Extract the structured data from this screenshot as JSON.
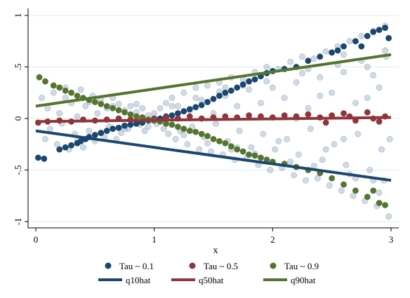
{
  "chart_data": {
    "type": "scatter",
    "xlabel": "x",
    "ylabel": "",
    "xlim": [
      0,
      3
    ],
    "ylim": [
      -1,
      1
    ],
    "x_ticks": [
      0,
      1,
      2,
      3
    ],
    "x_tick_labels": [
      "0",
      "1",
      "2",
      "3"
    ],
    "y_ticks": [
      -1,
      -0.5,
      0,
      0.5,
      1
    ],
    "y_tick_labels": [
      "-1",
      "-.5",
      "0",
      ".5",
      "1"
    ],
    "grid": "horizontal",
    "legend": "bottom",
    "background_points": {
      "color": "#a9bccf",
      "description_of_trend": "dense cloud within y = ±x/3 band",
      "points": [
        [
          0.05,
          0.2
        ],
        [
          0.08,
          -0.2
        ],
        [
          0.1,
          0.1
        ],
        [
          0.12,
          -0.1
        ],
        [
          0.15,
          0.25
        ],
        [
          0.18,
          -0.25
        ],
        [
          0.2,
          0.05
        ],
        [
          0.22,
          -0.05
        ],
        [
          0.25,
          0.3
        ],
        [
          0.28,
          -0.3
        ],
        [
          0.3,
          0.15
        ],
        [
          0.33,
          -0.15
        ],
        [
          0.35,
          0.02
        ],
        [
          0.38,
          0.28
        ],
        [
          0.4,
          -0.28
        ],
        [
          0.42,
          0.12
        ],
        [
          0.45,
          -0.12
        ],
        [
          0.48,
          0.22
        ],
        [
          0.5,
          -0.22
        ],
        [
          0.52,
          0.05
        ],
        [
          0.55,
          0.18
        ],
        [
          0.58,
          -0.18
        ],
        [
          0.6,
          0.1
        ],
        [
          0.62,
          -0.08
        ],
        [
          0.65,
          0.2
        ],
        [
          0.68,
          -0.2
        ],
        [
          0.7,
          0.14
        ],
        [
          0.72,
          -0.14
        ],
        [
          0.75,
          0.08
        ],
        [
          0.78,
          -0.1
        ],
        [
          0.8,
          0.12
        ],
        [
          0.82,
          -0.04
        ],
        [
          0.85,
          0.06
        ],
        [
          0.88,
          -0.06
        ],
        [
          0.9,
          0.1
        ],
        [
          0.92,
          -0.12
        ],
        [
          0.95,
          0.03
        ],
        [
          0.98,
          -0.02
        ],
        [
          1.0,
          0.05
        ],
        [
          1.02,
          -0.05
        ],
        [
          1.05,
          0.1
        ],
        [
          1.08,
          -0.1
        ],
        [
          1.1,
          0.15
        ],
        [
          1.12,
          -0.15
        ],
        [
          1.15,
          0.2
        ],
        [
          1.18,
          -0.2
        ],
        [
          1.2,
          0.12
        ],
        [
          1.22,
          -0.12
        ],
        [
          1.25,
          0.25
        ],
        [
          1.28,
          -0.25
        ],
        [
          1.3,
          0.08
        ],
        [
          1.32,
          -0.08
        ],
        [
          1.35,
          0.3
        ],
        [
          1.38,
          -0.3
        ],
        [
          1.4,
          0.18
        ],
        [
          1.42,
          -0.18
        ],
        [
          1.45,
          0.32
        ],
        [
          1.48,
          -0.32
        ],
        [
          1.5,
          0.05
        ],
        [
          1.52,
          -0.05
        ],
        [
          1.55,
          0.35
        ],
        [
          1.58,
          -0.35
        ],
        [
          1.6,
          0.22
        ],
        [
          1.62,
          -0.22
        ],
        [
          1.65,
          0.4
        ],
        [
          1.68,
          -0.4
        ],
        [
          1.7,
          0.12
        ],
        [
          1.72,
          -0.12
        ],
        [
          1.75,
          0.38
        ],
        [
          1.78,
          -0.38
        ],
        [
          1.8,
          0.28
        ],
        [
          1.82,
          -0.28
        ],
        [
          1.85,
          0.45
        ],
        [
          1.88,
          -0.45
        ],
        [
          1.9,
          0.15
        ],
        [
          1.92,
          -0.15
        ],
        [
          1.95,
          0.5
        ],
        [
          1.98,
          -0.5
        ],
        [
          2.0,
          0.3
        ],
        [
          2.02,
          -0.3
        ],
        [
          2.05,
          0.48
        ],
        [
          2.08,
          -0.48
        ],
        [
          2.1,
          0.2
        ],
        [
          2.12,
          -0.2
        ],
        [
          2.15,
          0.55
        ],
        [
          2.18,
          -0.55
        ],
        [
          2.2,
          0.35
        ],
        [
          2.22,
          -0.35
        ],
        [
          2.25,
          0.6
        ],
        [
          2.28,
          -0.6
        ],
        [
          2.3,
          0.1
        ],
        [
          2.32,
          -0.1
        ],
        [
          2.35,
          0.58
        ],
        [
          2.38,
          -0.58
        ],
        [
          2.4,
          0.4
        ],
        [
          2.42,
          -0.4
        ],
        [
          2.45,
          0.65
        ],
        [
          2.48,
          -0.65
        ],
        [
          2.5,
          0.25
        ],
        [
          2.52,
          -0.25
        ],
        [
          2.55,
          0.7
        ],
        [
          2.58,
          -0.7
        ],
        [
          2.6,
          0.45
        ],
        [
          2.62,
          -0.45
        ],
        [
          2.65,
          0.75
        ],
        [
          2.68,
          -0.75
        ],
        [
          2.7,
          0.15
        ],
        [
          2.72,
          -0.15
        ],
        [
          2.75,
          0.8
        ],
        [
          2.78,
          -0.8
        ],
        [
          2.8,
          0.5
        ],
        [
          2.82,
          -0.5
        ],
        [
          2.85,
          0.85
        ],
        [
          2.88,
          -0.85
        ],
        [
          2.9,
          0.3
        ],
        [
          2.92,
          -0.3
        ],
        [
          2.95,
          0.9
        ],
        [
          2.98,
          -0.95
        ],
        [
          2.96,
          0.6
        ],
        [
          2.94,
          -0.6
        ],
        [
          1.9,
          0.42
        ],
        [
          2.05,
          -0.22
        ],
        [
          2.3,
          0.48
        ],
        [
          2.45,
          -0.3
        ],
        [
          2.6,
          0.62
        ],
        [
          2.7,
          -0.58
        ],
        [
          2.85,
          0.42
        ],
        [
          2.9,
          -0.72
        ],
        [
          1.6,
          0.3
        ],
        [
          1.7,
          -0.28
        ],
        [
          0.25,
          0.2
        ],
        [
          0.35,
          -0.22
        ],
        [
          0.45,
          0.16
        ],
        [
          0.55,
          -0.14
        ],
        [
          0.65,
          0.12
        ],
        [
          0.75,
          -0.1
        ],
        [
          0.85,
          0.14
        ],
        [
          0.95,
          -0.08
        ],
        [
          1.15,
          0.12
        ],
        [
          1.25,
          -0.16
        ],
        [
          1.35,
          0.2
        ],
        [
          1.45,
          -0.24
        ],
        [
          1.55,
          0.26
        ],
        [
          1.65,
          -0.3
        ],
        [
          1.75,
          0.32
        ],
        [
          1.85,
          -0.34
        ],
        [
          1.95,
          0.36
        ],
        [
          2.15,
          -0.42
        ],
        [
          2.25,
          0.44
        ],
        [
          2.35,
          -0.46
        ],
        [
          2.55,
          0.52
        ],
        [
          2.65,
          -0.54
        ],
        [
          2.75,
          0.56
        ],
        [
          2.85,
          -0.6
        ],
        [
          2.95,
          0.66
        ],
        [
          2.4,
          0.22
        ],
        [
          2.6,
          -0.2
        ],
        [
          2.8,
          0.2
        ],
        [
          2.99,
          -0.2
        ],
        [
          2.2,
          0.0
        ]
      ]
    },
    "series": [
      {
        "name": "Tau ~ 0.1",
        "kind": "points",
        "color": "#1a476f",
        "points": [
          [
            0.02,
            -0.38
          ],
          [
            0.07,
            -0.39
          ],
          [
            0.2,
            -0.3
          ],
          [
            0.25,
            -0.28
          ],
          [
            0.3,
            -0.26
          ],
          [
            0.35,
            -0.24
          ],
          [
            0.38,
            -0.22
          ],
          [
            0.42,
            -0.2
          ],
          [
            0.45,
            -0.18
          ],
          [
            0.5,
            -0.16
          ],
          [
            0.55,
            -0.14
          ],
          [
            0.6,
            -0.12
          ],
          [
            0.65,
            -0.1
          ],
          [
            0.7,
            -0.09
          ],
          [
            0.75,
            -0.07
          ],
          [
            0.8,
            -0.06
          ],
          [
            0.85,
            -0.05
          ],
          [
            0.9,
            -0.04
          ],
          [
            0.95,
            -0.02
          ],
          [
            1.0,
            -0.01
          ],
          [
            1.05,
            0.0
          ],
          [
            1.1,
            0.02
          ],
          [
            1.15,
            0.03
          ],
          [
            1.2,
            0.05
          ],
          [
            1.25,
            0.07
          ],
          [
            1.3,
            0.09
          ],
          [
            1.35,
            0.11
          ],
          [
            1.4,
            0.13
          ],
          [
            1.45,
            0.16
          ],
          [
            1.5,
            0.19
          ],
          [
            1.55,
            0.22
          ],
          [
            1.6,
            0.25
          ],
          [
            1.65,
            0.27
          ],
          [
            1.7,
            0.3
          ],
          [
            1.75,
            0.33
          ],
          [
            1.8,
            0.36
          ],
          [
            1.85,
            0.38
          ],
          [
            1.9,
            0.41
          ],
          [
            1.95,
            0.44
          ],
          [
            2.0,
            0.46
          ],
          [
            2.1,
            0.48
          ],
          [
            2.2,
            0.5
          ],
          [
            2.3,
            0.56
          ],
          [
            2.4,
            0.6
          ],
          [
            2.5,
            0.64
          ],
          [
            2.6,
            0.7
          ],
          [
            2.7,
            0.75
          ],
          [
            2.8,
            0.8
          ],
          [
            2.85,
            0.84
          ],
          [
            2.9,
            0.86
          ],
          [
            2.95,
            0.88
          ],
          [
            2.98,
            0.78
          ],
          [
            2.75,
            0.7
          ],
          [
            2.55,
            0.66
          ]
        ]
      },
      {
        "name": "Tau ~ 0.5",
        "kind": "points",
        "color": "#90353b",
        "points": [
          [
            0.02,
            -0.04
          ],
          [
            0.1,
            -0.03
          ],
          [
            0.2,
            -0.02
          ],
          [
            0.3,
            -0.03
          ],
          [
            0.4,
            -0.01
          ],
          [
            0.5,
            -0.02
          ],
          [
            0.6,
            -0.01
          ],
          [
            0.7,
            0.0
          ],
          [
            0.8,
            -0.01
          ],
          [
            0.9,
            0.01
          ],
          [
            1.0,
            0.0
          ],
          [
            1.1,
            0.01
          ],
          [
            1.2,
            0.0
          ],
          [
            1.3,
            0.02
          ],
          [
            1.4,
            0.0
          ],
          [
            1.5,
            0.01
          ],
          [
            1.6,
            0.02
          ],
          [
            1.7,
            0.01
          ],
          [
            1.8,
            0.03
          ],
          [
            1.9,
            0.02
          ],
          [
            2.0,
            0.01
          ],
          [
            2.1,
            0.03
          ],
          [
            2.2,
            0.02
          ],
          [
            2.3,
            0.04
          ],
          [
            2.4,
            0.01
          ],
          [
            2.5,
            0.03
          ],
          [
            2.6,
            0.05
          ],
          [
            2.7,
            -0.02
          ],
          [
            2.8,
            0.06
          ],
          [
            2.9,
            -0.03
          ],
          [
            2.95,
            0.02
          ],
          [
            2.45,
            -0.04
          ],
          [
            2.65,
            0.02
          ],
          [
            2.85,
            0.0
          ]
        ]
      },
      {
        "name": "Tau ~ 0.9",
        "kind": "points",
        "color": "#55752f",
        "points": [
          [
            0.03,
            0.4
          ],
          [
            0.08,
            0.36
          ],
          [
            0.15,
            0.32
          ],
          [
            0.2,
            0.3
          ],
          [
            0.25,
            0.27
          ],
          [
            0.3,
            0.25
          ],
          [
            0.35,
            0.22
          ],
          [
            0.4,
            0.2
          ],
          [
            0.45,
            0.18
          ],
          [
            0.5,
            0.16
          ],
          [
            0.55,
            0.14
          ],
          [
            0.6,
            0.12
          ],
          [
            0.65,
            0.1
          ],
          [
            0.7,
            0.08
          ],
          [
            0.75,
            0.06
          ],
          [
            0.8,
            0.04
          ],
          [
            0.85,
            0.02
          ],
          [
            0.9,
            0.0
          ],
          [
            0.95,
            -0.01
          ],
          [
            1.0,
            -0.02
          ],
          [
            1.05,
            -0.03
          ],
          [
            1.1,
            -0.05
          ],
          [
            1.15,
            -0.06
          ],
          [
            1.2,
            -0.08
          ],
          [
            1.25,
            -0.1
          ],
          [
            1.3,
            -0.12
          ],
          [
            1.35,
            -0.13
          ],
          [
            1.4,
            -0.15
          ],
          [
            1.45,
            -0.17
          ],
          [
            1.5,
            -0.2
          ],
          [
            1.55,
            -0.22
          ],
          [
            1.6,
            -0.24
          ],
          [
            1.65,
            -0.27
          ],
          [
            1.7,
            -0.3
          ],
          [
            1.75,
            -0.32
          ],
          [
            1.8,
            -0.35
          ],
          [
            1.85,
            -0.36
          ],
          [
            1.9,
            -0.38
          ],
          [
            1.95,
            -0.4
          ],
          [
            2.0,
            -0.42
          ],
          [
            2.1,
            -0.44
          ],
          [
            2.2,
            -0.47
          ],
          [
            2.3,
            -0.5
          ],
          [
            2.4,
            -0.53
          ],
          [
            2.5,
            -0.58
          ],
          [
            2.6,
            -0.64
          ],
          [
            2.7,
            -0.7
          ],
          [
            2.8,
            -0.76
          ],
          [
            2.9,
            -0.82
          ],
          [
            2.95,
            -0.84
          ],
          [
            2.85,
            -0.7
          ]
        ]
      },
      {
        "name": "q10hat",
        "kind": "line",
        "color": "#1a476f",
        "x": [
          0,
          3
        ],
        "values": [
          -0.12,
          -0.6
        ]
      },
      {
        "name": "q50hat",
        "kind": "line",
        "color": "#90353b",
        "x": [
          0,
          3
        ],
        "values": [
          -0.03,
          0.01
        ]
      },
      {
        "name": "q90hat",
        "kind": "line",
        "color": "#55752f",
        "x": [
          0,
          3
        ],
        "values": [
          0.12,
          0.62
        ]
      }
    ]
  }
}
